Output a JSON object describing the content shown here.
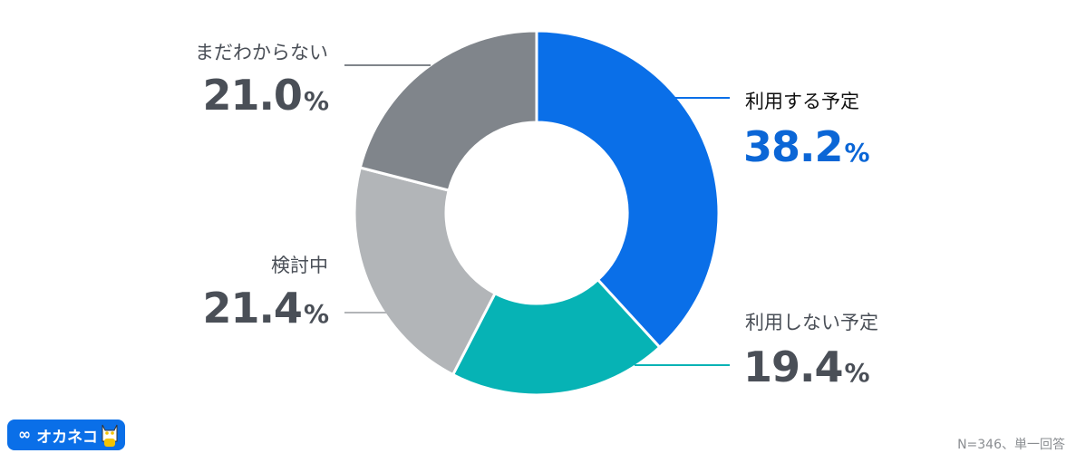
{
  "chart_data": {
    "type": "pie",
    "donut": true,
    "categories": [
      "利用する予定",
      "利用しない予定",
      "検討中",
      "まだわからない"
    ],
    "values": [
      38.2,
      19.4,
      21.4,
      21.0
    ],
    "unit": "%",
    "colors": [
      "#0a6fe8",
      "#06b3b5",
      "#b2b5b8",
      "#80858b"
    ],
    "start": "top",
    "direction": "clockwise"
  },
  "labels": [
    {
      "name": "利用する予定",
      "value": "38.2",
      "unit": "%",
      "color": "#0b66d6"
    },
    {
      "name": "利用しない予定",
      "value": "19.4",
      "unit": "%",
      "color": "#4a4f57"
    },
    {
      "name": "検討中",
      "value": "21.4",
      "unit": "%",
      "color": "#4a4f57"
    },
    {
      "name": "まだわからない",
      "value": "21.0",
      "unit": "%",
      "color": "#4a4f57"
    }
  ],
  "logo": {
    "text": "オカネコ",
    "icon": "infinity-icon"
  },
  "footer": "N=346、単一回答"
}
